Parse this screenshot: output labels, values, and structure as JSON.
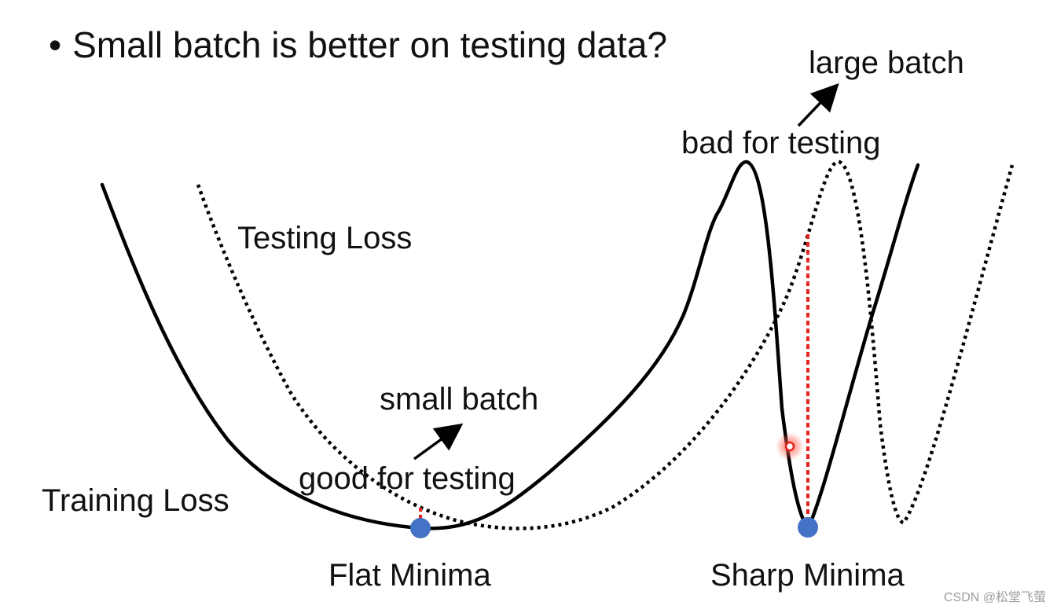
{
  "slide": {
    "bullet": "•",
    "title": "Small batch is better on testing data?"
  },
  "labels": {
    "testing_loss": "Testing Loss",
    "training_loss": "Training Loss",
    "small_batch": "small batch",
    "good_for_testing": "good for testing",
    "large_batch": "large batch",
    "bad_for_testing": "bad for testing",
    "flat_minima": "Flat Minima",
    "sharp_minima": "Sharp Minima"
  },
  "watermark": "CSDN @松堂飞萤",
  "colors": {
    "curve": "#000000",
    "minima_dot": "#4472c4",
    "gap_line": "#e8221b"
  }
}
